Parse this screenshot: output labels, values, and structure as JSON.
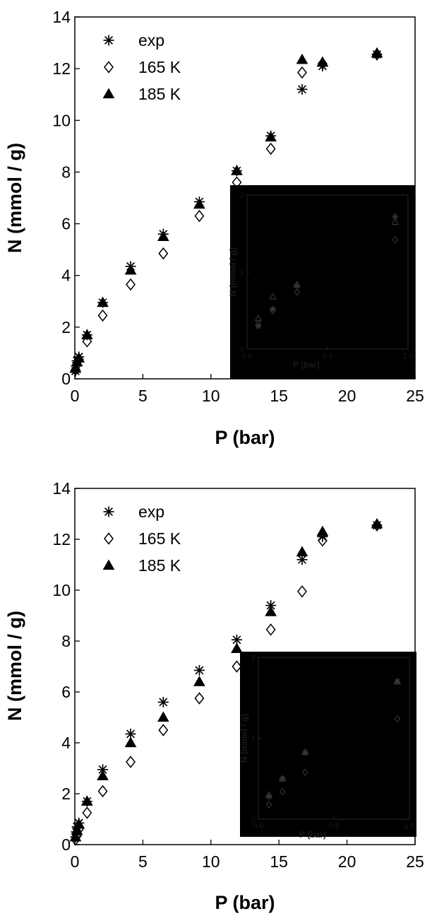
{
  "chart_data": [
    {
      "type": "scatter",
      "title": "",
      "xlabel": "P (bar)",
      "ylabel": "N (mmol / g)",
      "xlim": [
        0,
        25
      ],
      "ylim": [
        0,
        14
      ],
      "xticks": [
        0,
        5,
        10,
        15,
        20,
        25
      ],
      "yticks": [
        0,
        2,
        4,
        6,
        8,
        10,
        12,
        14
      ],
      "legend_position": "top-left",
      "series": [
        {
          "name": "exp",
          "marker": "asterisk",
          "x": [
            0.05,
            0.1,
            0.16,
            0.3,
            0.9,
            2.05,
            4.1,
            6.5,
            9.15,
            11.9,
            14.4,
            16.7,
            18.2,
            22.2
          ],
          "y": [
            0.3,
            0.5,
            0.7,
            0.85,
            1.7,
            2.95,
            4.35,
            5.6,
            6.85,
            8.05,
            9.4,
            11.2,
            12.1,
            12.55
          ]
        },
        {
          "name": "165 K",
          "marker": "diamond-open",
          "x": [
            0.05,
            0.16,
            0.3,
            0.9,
            2.05,
            4.1,
            6.5,
            9.15,
            11.9,
            14.4,
            16.7,
            18.2,
            22.2
          ],
          "y": [
            0.35,
            0.55,
            0.75,
            1.45,
            2.45,
            3.65,
            4.85,
            6.3,
            7.6,
            8.9,
            11.85,
            12.2,
            12.55
          ]
        },
        {
          "name": "185 K",
          "marker": "triangle-filled",
          "x": [
            0.05,
            0.16,
            0.3,
            0.9,
            2.05,
            4.1,
            6.5,
            9.15,
            11.9,
            14.4,
            16.7,
            18.2,
            22.2
          ],
          "y": [
            0.4,
            0.65,
            0.8,
            1.7,
            2.95,
            4.2,
            5.5,
            6.75,
            8.05,
            9.35,
            12.35,
            12.25,
            12.6
          ]
        }
      ],
      "inset": {
        "xlabel": "P (bar)",
        "ylabel": "N (mmol / g)",
        "xlim": [
          0,
          1.0
        ],
        "ylim": [
          0,
          2
        ],
        "xtick_labels": [
          "0.0",
          "0.5",
          "1.0"
        ],
        "ytick_labels": [
          "0",
          "1",
          "2"
        ],
        "background": "#000000",
        "foreground": "#262626",
        "series": [
          {
            "marker": "asterisk",
            "x": [
              0.07,
              0.16,
              0.31,
              0.92
            ],
            "y": [
              0.3,
              0.52,
              0.82,
              1.72
            ]
          },
          {
            "marker": "diamond-open",
            "x": [
              0.07,
              0.16,
              0.31,
              0.92
            ],
            "y": [
              0.33,
              0.5,
              0.74,
              1.42
            ]
          },
          {
            "marker": "triangle-open",
            "x": [
              0.07,
              0.16,
              0.31,
              0.92
            ],
            "y": [
              0.4,
              0.68,
              0.84,
              1.65
            ]
          }
        ]
      }
    },
    {
      "type": "scatter",
      "title": "",
      "xlabel": "P (bar)",
      "ylabel": "N (mmol / g)",
      "xlim": [
        0,
        25
      ],
      "ylim": [
        0,
        14
      ],
      "xticks": [
        0,
        5,
        10,
        15,
        20,
        25
      ],
      "yticks": [
        0,
        2,
        4,
        6,
        8,
        10,
        12,
        14
      ],
      "legend_position": "top-left",
      "series": [
        {
          "name": "exp",
          "marker": "asterisk",
          "x": [
            0.05,
            0.1,
            0.16,
            0.3,
            0.9,
            2.05,
            4.1,
            6.5,
            9.15,
            11.9,
            14.4,
            16.7,
            18.2,
            22.2
          ],
          "y": [
            0.3,
            0.5,
            0.7,
            0.85,
            1.7,
            2.95,
            4.35,
            5.6,
            6.85,
            8.05,
            9.4,
            11.2,
            12.1,
            12.55
          ]
        },
        {
          "name": "165 K",
          "marker": "diamond-open",
          "x": [
            0.05,
            0.16,
            0.3,
            0.9,
            2.05,
            4.1,
            6.5,
            9.15,
            11.9,
            14.4,
            16.7,
            18.2,
            22.2
          ],
          "y": [
            0.2,
            0.35,
            0.6,
            1.25,
            2.1,
            3.25,
            4.5,
            5.75,
            7.0,
            8.45,
            9.95,
            11.95,
            12.55
          ]
        },
        {
          "name": "185 K",
          "marker": "triangle-filled",
          "x": [
            0.05,
            0.16,
            0.3,
            0.9,
            2.05,
            4.1,
            6.5,
            9.15,
            11.9,
            14.4,
            16.7,
            18.2,
            22.2
          ],
          "y": [
            0.3,
            0.55,
            0.8,
            1.7,
            2.7,
            4.0,
            5.0,
            6.4,
            7.7,
            9.15,
            11.5,
            12.3,
            12.6
          ]
        }
      ],
      "inset": {
        "xlabel": "P (bar)",
        "ylabel": "N (mmol / g)",
        "xlim": [
          0,
          1.0
        ],
        "ylim": [
          0,
          2
        ],
        "xtick_labels": [
          "0.0",
          "0.5",
          "1.0"
        ],
        "ytick_labels": [
          "0",
          "1",
          "2"
        ],
        "background": "#000000",
        "foreground": "#262626",
        "series": [
          {
            "marker": "asterisk",
            "x": [
              0.07,
              0.16,
              0.31,
              0.92
            ],
            "y": [
              0.28,
              0.5,
              0.82,
              1.7
            ]
          },
          {
            "marker": "diamond-open",
            "x": [
              0.07,
              0.16,
              0.31,
              0.92
            ],
            "y": [
              0.18,
              0.34,
              0.58,
              1.24
            ]
          },
          {
            "marker": "triangle-open",
            "x": [
              0.07,
              0.16,
              0.31,
              0.92
            ],
            "y": [
              0.3,
              0.5,
              0.83,
              1.7
            ]
          }
        ]
      }
    }
  ]
}
